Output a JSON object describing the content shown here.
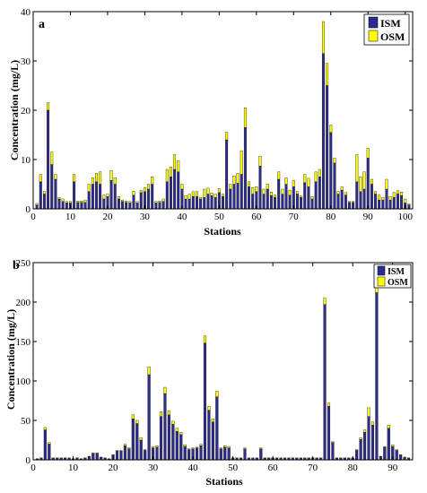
{
  "colors": {
    "ism": "#2e2c8f",
    "osm": "#ffff00",
    "axis": "#000000"
  },
  "chart_data": [
    {
      "type": "bar",
      "stacked": true,
      "panel": "a",
      "xlabel": "Stations",
      "ylabel": "Concentration (mg/L)",
      "xlim": [
        0,
        102
      ],
      "ylim": [
        0,
        40
      ],
      "xticks": [
        0,
        10,
        20,
        30,
        40,
        50,
        60,
        70,
        80,
        90,
        100
      ],
      "yticks": [
        0,
        10,
        20,
        30,
        40
      ],
      "legend_position": "top-right",
      "categories": [
        1,
        2,
        3,
        4,
        5,
        6,
        7,
        8,
        9,
        10,
        11,
        12,
        13,
        14,
        15,
        16,
        17,
        18,
        19,
        20,
        21,
        22,
        23,
        24,
        25,
        26,
        27,
        28,
        29,
        30,
        31,
        32,
        33,
        34,
        35,
        36,
        37,
        38,
        39,
        40,
        41,
        42,
        43,
        44,
        45,
        46,
        47,
        48,
        49,
        50,
        51,
        52,
        53,
        54,
        55,
        56,
        57,
        58,
        59,
        60,
        61,
        62,
        63,
        64,
        65,
        66,
        67,
        68,
        69,
        70,
        71,
        72,
        73,
        74,
        75,
        76,
        77,
        78,
        79,
        80,
        81,
        82,
        83,
        84,
        85,
        86,
        87,
        88,
        89,
        90,
        91,
        92,
        93,
        94,
        95,
        96,
        97,
        98,
        99,
        100,
        101
      ],
      "series": [
        {
          "name": "ISM",
          "values": [
            0.8,
            5.5,
            3.0,
            20.0,
            9.0,
            6.0,
            2.0,
            1.5,
            1.2,
            1.2,
            5.5,
            1.3,
            1.3,
            1.3,
            3.5,
            5.0,
            5.5,
            5.0,
            2.0,
            2.5,
            5.8,
            5.0,
            2.0,
            1.5,
            1.3,
            1.2,
            2.8,
            1.2,
            3.3,
            3.5,
            4.0,
            5.0,
            1.2,
            1.3,
            1.5,
            5.5,
            6.5,
            8.0,
            7.5,
            4.0,
            2.0,
            2.0,
            2.5,
            2.5,
            2.0,
            2.3,
            3.0,
            2.7,
            2.3,
            3.3,
            2.5,
            14.0,
            4.0,
            5.0,
            5.2,
            7.0,
            16.5,
            4.5,
            3.0,
            3.5,
            8.7,
            3.0,
            4.0,
            2.7,
            2.3,
            6.0,
            3.0,
            5.0,
            2.8,
            4.5,
            3.0,
            2.3,
            5.3,
            4.5,
            2.0,
            5.5,
            6.5,
            31.5,
            25.0,
            15.5,
            9.3,
            3.0,
            3.8,
            2.8,
            1.3,
            1.3,
            5.5,
            3.5,
            4.0,
            10.3,
            5.0,
            3.0,
            1.8,
            1.8,
            4.0,
            1.8,
            2.3,
            3.0,
            2.7,
            1.2,
            0.8
          ]
        },
        {
          "name": "OSM",
          "values": [
            0.3,
            1.5,
            0.5,
            1.5,
            2.5,
            1.0,
            0.3,
            0.5,
            0.3,
            0.3,
            1.5,
            0.3,
            0.3,
            0.5,
            1.5,
            1.3,
            1.7,
            2.5,
            0.8,
            0.5,
            2.0,
            1.3,
            0.5,
            0.3,
            0.3,
            0.3,
            0.8,
            0.3,
            0.5,
            0.8,
            1.0,
            1.5,
            0.3,
            0.3,
            0.5,
            2.5,
            2.0,
            3.0,
            2.3,
            1.0,
            0.7,
            1.0,
            1.0,
            1.0,
            0.3,
            1.7,
            1.2,
            0.5,
            0.7,
            0.8,
            0.5,
            1.5,
            1.0,
            1.7,
            2.0,
            4.8,
            4.0,
            1.0,
            1.3,
            1.0,
            2.0,
            1.0,
            1.0,
            0.7,
            0.5,
            1.5,
            1.0,
            1.3,
            1.0,
            1.3,
            0.5,
            0.3,
            1.7,
            1.7,
            0.5,
            2.0,
            1.5,
            6.5,
            4.5,
            1.5,
            1.0,
            0.5,
            0.7,
            0.5,
            0.2,
            0.2,
            5.5,
            3.0,
            3.5,
            2.0,
            1.0,
            0.5,
            1.0,
            0.5,
            2.0,
            0.7,
            1.0,
            0.7,
            0.7,
            0.8,
            0.2
          ]
        }
      ]
    },
    {
      "type": "bar",
      "stacked": true,
      "panel": "b",
      "xlabel": "Stations",
      "ylabel": "Concentration (mg/L)",
      "xlim": [
        0,
        95
      ],
      "ylim": [
        0,
        250
      ],
      "xticks": [
        0,
        10,
        20,
        30,
        40,
        50,
        60,
        70,
        80,
        90
      ],
      "yticks": [
        0,
        50,
        100,
        150,
        200,
        250
      ],
      "legend_position": "top-right",
      "categories": [
        1,
        2,
        3,
        4,
        5,
        6,
        7,
        8,
        9,
        10,
        11,
        12,
        13,
        14,
        15,
        16,
        17,
        18,
        19,
        20,
        21,
        22,
        23,
        24,
        25,
        26,
        27,
        28,
        29,
        30,
        31,
        32,
        33,
        34,
        35,
        36,
        37,
        38,
        39,
        40,
        41,
        42,
        43,
        44,
        45,
        46,
        47,
        48,
        49,
        50,
        51,
        52,
        53,
        54,
        55,
        56,
        57,
        58,
        59,
        60,
        61,
        62,
        63,
        64,
        65,
        66,
        67,
        68,
        69,
        70,
        71,
        72,
        73,
        74,
        75,
        76,
        77,
        78,
        79,
        80,
        81,
        82,
        83,
        84,
        85,
        86,
        87,
        88,
        89,
        90,
        91,
        92,
        93,
        94
      ],
      "series": [
        {
          "name": "ISM",
          "values": [
            1,
            2,
            38,
            20,
            2,
            2,
            2,
            2,
            2,
            1,
            2,
            1,
            2,
            4,
            8,
            8,
            3,
            2,
            1,
            6,
            11,
            11,
            18,
            14,
            52,
            46,
            25,
            12,
            108,
            15,
            16,
            55,
            84,
            57,
            45,
            36,
            32,
            17,
            13,
            14,
            15,
            18,
            148,
            63,
            48,
            80,
            14,
            16,
            15,
            2,
            2,
            2,
            14,
            2,
            2,
            2,
            14,
            2,
            2,
            2,
            2,
            2,
            2,
            2,
            2,
            2,
            2,
            2,
            2,
            2,
            2,
            2,
            197,
            68,
            22,
            2,
            2,
            2,
            2,
            2,
            12,
            26,
            35,
            55,
            44,
            212,
            4,
            16,
            40,
            17,
            12,
            6,
            3,
            2
          ]
        },
        {
          "name": "OSM",
          "values": [
            0.5,
            0.5,
            3,
            2,
            0.5,
            0.5,
            0.5,
            0.5,
            0.5,
            0.5,
            0.5,
            0.5,
            0.5,
            0.5,
            1,
            1,
            0.5,
            0.5,
            0.5,
            0.5,
            1,
            1,
            2,
            1.5,
            5,
            4,
            3,
            1,
            10,
            2,
            2,
            6,
            8,
            5,
            4,
            4,
            3,
            2,
            1,
            1,
            1,
            2,
            9,
            5,
            4,
            7,
            1,
            2,
            2,
            0.5,
            0.5,
            0.5,
            1,
            0.5,
            0.5,
            0.5,
            1,
            0.5,
            0.5,
            0.5,
            0.5,
            0.5,
            0.5,
            0.5,
            0.5,
            0.5,
            0.5,
            0.5,
            0.5,
            0.5,
            0.5,
            0.5,
            8,
            4,
            1,
            0.5,
            0.5,
            0.5,
            0.5,
            0.5,
            1,
            2,
            3,
            11,
            4,
            12,
            0.5,
            1,
            4,
            2,
            1,
            0.5,
            0.5,
            0.5
          ]
        }
      ]
    }
  ]
}
